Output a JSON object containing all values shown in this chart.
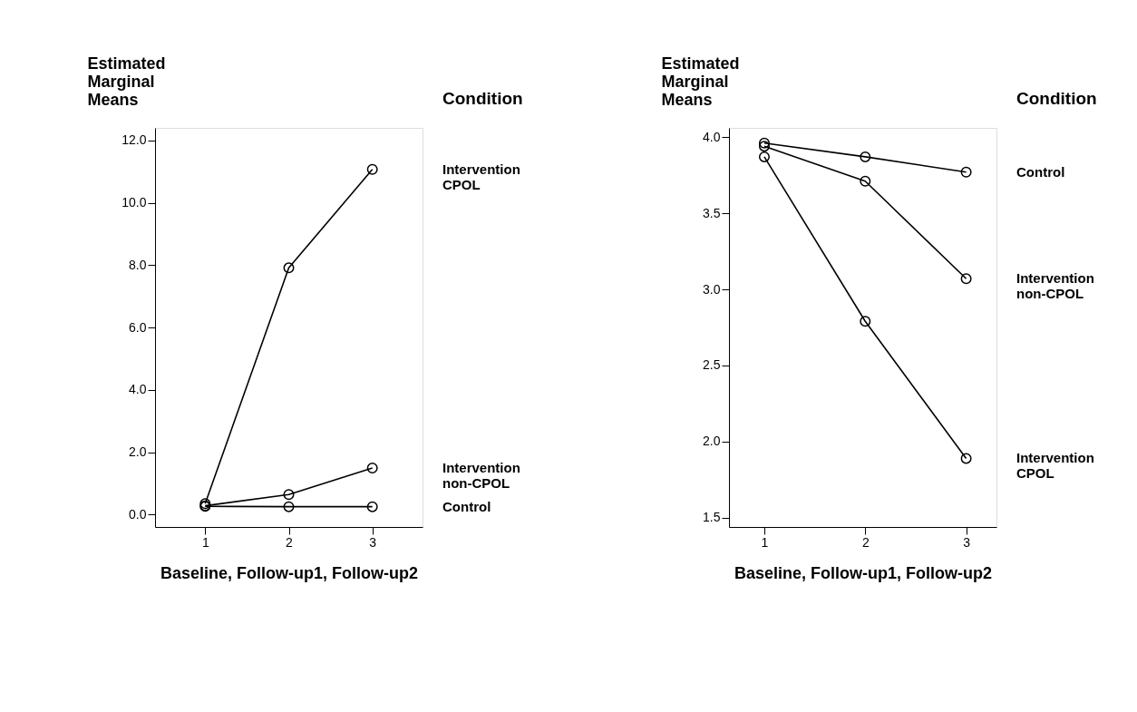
{
  "chart_data": [
    {
      "type": "line",
      "xlabel": "Baseline, Follow-up1, Follow-up2",
      "ylabel": "Estimated Marginal Means",
      "legend_title": "Condition",
      "legend": "right",
      "marker": "circle",
      "line_style": "solid",
      "grid": false,
      "xlim": [
        0.4,
        3.6
      ],
      "xticks": [
        1,
        2,
        3
      ],
      "ylim": [
        -0.4,
        12.4
      ],
      "yticks": [
        {
          "value": 0,
          "label": "0.0"
        },
        {
          "value": 2,
          "label": "2.0"
        },
        {
          "value": 4,
          "label": "4.0"
        },
        {
          "value": 6,
          "label": "6.0"
        },
        {
          "value": 8,
          "label": "8.0"
        },
        {
          "value": 10,
          "label": "10.0"
        },
        {
          "value": 12,
          "label": "12.0"
        }
      ],
      "x": [
        1,
        2,
        3
      ],
      "series": [
        {
          "name": "Intervention CPOL",
          "color": "#000000",
          "values": [
            0.35,
            7.91,
            11.07
          ]
        },
        {
          "name": "Intervention non-CPOL",
          "color": "#000000",
          "values": [
            0.28,
            0.64,
            1.49
          ]
        },
        {
          "name": "Control",
          "color": "#000000",
          "values": [
            0.26,
            0.25,
            0.25
          ]
        }
      ]
    },
    {
      "type": "line",
      "xlabel": "Baseline, Follow-up1, Follow-up2",
      "ylabel": "Estimated Marginal Means",
      "legend_title": "Condition",
      "legend": "right",
      "marker": "circle",
      "line_style": "solid",
      "grid": false,
      "xlim": [
        0.65,
        3.3
      ],
      "xticks": [
        1,
        2,
        3
      ],
      "ylim": [
        1.44,
        4.06
      ],
      "yticks": [
        {
          "value": 1.5,
          "label": "1.5"
        },
        {
          "value": 2,
          "label": "2.0"
        },
        {
          "value": 2.5,
          "label": "2.5"
        },
        {
          "value": 3,
          "label": "3.0"
        },
        {
          "value": 3.5,
          "label": "3.5"
        },
        {
          "value": 4,
          "label": "4.0"
        }
      ],
      "x": [
        1,
        2,
        3
      ],
      "series": [
        {
          "name": "Control",
          "color": "#000000",
          "values": [
            3.96,
            3.87,
            3.77
          ]
        },
        {
          "name": "Intervention non-CPOL",
          "color": "#000000",
          "values": [
            3.94,
            3.71,
            3.07
          ]
        },
        {
          "name": "Intervention CPOL",
          "color": "#000000",
          "values": [
            3.87,
            2.79,
            1.89
          ]
        }
      ]
    }
  ]
}
